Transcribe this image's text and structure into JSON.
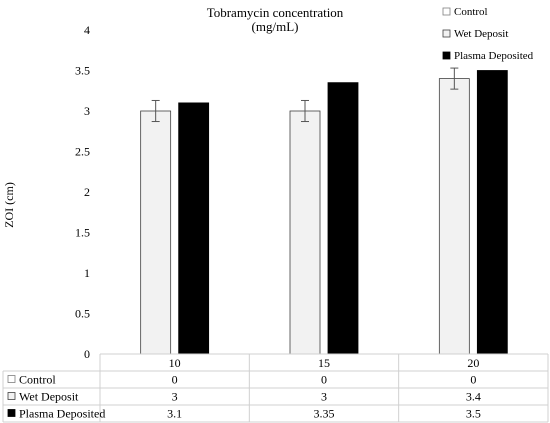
{
  "chart_data": {
    "type": "bar",
    "title_lines": [
      "Tobramycin concentration",
      "(mg/mL)"
    ],
    "ylabel": "ZOI (cm)",
    "ylim": [
      0,
      4
    ],
    "y_ticks": [
      "0",
      "0.5",
      "1",
      "1.5",
      "2",
      "2.5",
      "3",
      "3.5",
      "4"
    ],
    "categories": [
      "10",
      "15",
      "20"
    ],
    "series": [
      {
        "name": "Control",
        "values": [
          0,
          0,
          0
        ],
        "color": "#ffffff",
        "border": "#7f7f7f"
      },
      {
        "name": "Wet Deposit",
        "values": [
          3,
          3,
          3.4
        ],
        "error": [
          0.13,
          0.13,
          0.13
        ],
        "color": "#f2f2f2",
        "border": "#404040"
      },
      {
        "name": "Plasma Deposited",
        "values": [
          3.1,
          3.35,
          3.5
        ],
        "color": "#000000",
        "border": "#000000"
      }
    ],
    "table": {
      "rows": [
        {
          "label": "Control",
          "cells": [
            "0",
            "0",
            "0"
          ]
        },
        {
          "label": "Wet Deposit",
          "cells": [
            "3",
            "3",
            "3.4"
          ]
        },
        {
          "label": "Plasma Deposited",
          "cells": [
            "3.1",
            "3.35",
            "3.5"
          ]
        }
      ]
    },
    "legend_position": "top-right",
    "grid": false
  }
}
